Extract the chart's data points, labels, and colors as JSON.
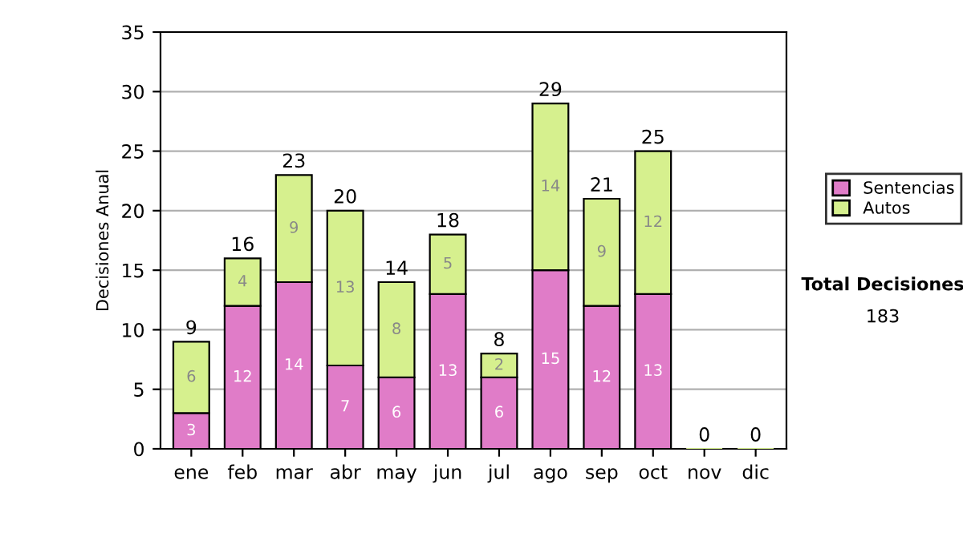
{
  "chart_data": {
    "type": "bar",
    "stacked": true,
    "ylabel": "Decisiones Anual",
    "categories": [
      "ene",
      "feb",
      "mar",
      "abr",
      "may",
      "jun",
      "jul",
      "ago",
      "sep",
      "oct",
      "nov",
      "dic"
    ],
    "series": [
      {
        "name": "Sentencias",
        "color": "#e07cc8",
        "values": [
          3,
          12,
          14,
          7,
          6,
          13,
          6,
          15,
          12,
          13,
          0,
          0
        ],
        "value_labels": [
          "3",
          "12",
          "14",
          "7",
          "6",
          "13",
          "6",
          "15",
          "12",
          "13",
          null,
          null
        ]
      },
      {
        "name": "Autos",
        "color": "#d6f08e",
        "values": [
          6,
          4,
          9,
          13,
          8,
          5,
          2,
          14,
          9,
          12,
          0,
          0
        ],
        "value_labels": [
          "6",
          "4",
          "9",
          "13",
          "8",
          "5",
          "2",
          "14",
          "9",
          "12",
          null,
          null
        ]
      }
    ],
    "totals": [
      "9",
      "16",
      "23",
      "20",
      "14",
      "18",
      "8",
      "29",
      "21",
      "25",
      "0",
      "0"
    ],
    "ylim": [
      0,
      35
    ],
    "yticks": [
      0,
      5,
      10,
      15,
      20,
      25,
      30,
      35
    ],
    "grid": "y",
    "legend": "right",
    "annotations": [
      "Total Decisiones",
      "183"
    ]
  }
}
